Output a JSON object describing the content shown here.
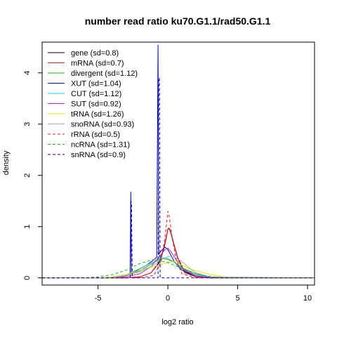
{
  "chart_data": {
    "type": "line",
    "title": "number read ratio ku70.G1.1/rad50.G1.1",
    "xlabel": "log2 ratio",
    "ylabel": "density",
    "xlim": [
      -9,
      10.5
    ],
    "ylim": [
      0,
      4.6
    ],
    "xticks": [
      -5,
      0,
      5,
      10
    ],
    "yticks": [
      0,
      1,
      2,
      3,
      4
    ],
    "grid": false,
    "legend_position": "top-left",
    "series": [
      {
        "name": "gene (sd=0.8)",
        "color": "#000000",
        "dash": "solid",
        "x": [
          -9,
          -3,
          -2,
          -1.2,
          -0.6,
          -0.3,
          -0.1,
          0,
          0.1,
          0.2,
          0.4,
          0.7,
          1.2,
          2,
          3,
          10.5
        ],
        "y": [
          0,
          0,
          0.02,
          0.1,
          0.3,
          0.55,
          0.8,
          0.96,
          0.97,
          0.9,
          0.7,
          0.4,
          0.12,
          0.02,
          0,
          0
        ]
      },
      {
        "name": "mRNA (sd=0.7)",
        "color": "#e41a1c",
        "dash": "solid",
        "x": [
          -9,
          -3,
          -2,
          -1.2,
          -0.6,
          -0.3,
          -0.1,
          0,
          0.1,
          0.2,
          0.4,
          0.7,
          1.2,
          2,
          3,
          10.5
        ],
        "y": [
          0,
          0,
          0.02,
          0.1,
          0.32,
          0.58,
          0.82,
          0.95,
          0.96,
          0.88,
          0.68,
          0.38,
          0.1,
          0.02,
          0,
          0
        ]
      },
      {
        "name": "divergent (sd=1.12)",
        "color": "#22b222",
        "dash": "solid",
        "x": [
          -9,
          -5,
          -4,
          -3,
          -2,
          -1,
          -0.5,
          0,
          0.5,
          1,
          2,
          3,
          4,
          10.5
        ],
        "y": [
          0,
          0,
          0.01,
          0.04,
          0.14,
          0.3,
          0.38,
          0.36,
          0.3,
          0.2,
          0.08,
          0.02,
          0,
          0
        ]
      },
      {
        "name": "XUT (sd=1.04)",
        "color": "#0000cc",
        "dash": "solid",
        "x": [
          -9,
          -4,
          -3,
          -2.7,
          -2.65,
          -2.6,
          -2.55,
          -2.4,
          -1.5,
          -0.8,
          -0.7,
          -0.65,
          -0.6,
          -0.55,
          -0.4,
          -0.2,
          0,
          0.2,
          0.5,
          1,
          2,
          3,
          4,
          10.5
        ],
        "y": [
          0,
          0,
          0.05,
          0.08,
          1.68,
          0.08,
          0.1,
          0.12,
          0.25,
          0.4,
          4.55,
          0.45,
          0.48,
          0.5,
          0.55,
          0.6,
          0.55,
          0.45,
          0.3,
          0.15,
          0.04,
          0.01,
          0,
          0
        ]
      },
      {
        "name": "CUT (sd=1.12)",
        "color": "#22cccc",
        "dash": "solid",
        "x": [
          -9,
          -5,
          -4,
          -3,
          -2,
          -1,
          -0.5,
          0,
          0.5,
          1,
          2,
          3,
          4,
          10.5
        ],
        "y": [
          0,
          0,
          0.02,
          0.06,
          0.18,
          0.32,
          0.4,
          0.38,
          0.3,
          0.18,
          0.06,
          0.02,
          0,
          0
        ]
      },
      {
        "name": "SUT (sd=0.92)",
        "color": "#cc22cc",
        "dash": "solid",
        "x": [
          -9,
          -4,
          -3,
          -2,
          -1.2,
          -0.6,
          -0.2,
          0,
          0.2,
          0.6,
          1.2,
          2,
          3,
          10.5
        ],
        "y": [
          0,
          0,
          0.02,
          0.08,
          0.22,
          0.42,
          0.55,
          0.58,
          0.52,
          0.35,
          0.15,
          0.04,
          0,
          0
        ]
      },
      {
        "name": "tRNA (sd=1.26)",
        "color": "#e6e600",
        "dash": "solid",
        "x": [
          -9,
          -5,
          -4,
          -3,
          -2,
          -1,
          0,
          0.5,
          1,
          1.5,
          2,
          3,
          4,
          5,
          10.5
        ],
        "y": [
          0,
          0,
          0.02,
          0.06,
          0.15,
          0.22,
          0.3,
          0.32,
          0.25,
          0.18,
          0.14,
          0.07,
          0.02,
          0,
          0
        ]
      },
      {
        "name": "snoRNA (sd=0.93)",
        "color": "#aaaaaa",
        "dash": "solid",
        "x": [
          -9,
          -4,
          -3,
          -2,
          -1,
          -0.5,
          0,
          0.5,
          1,
          1.5,
          2,
          3,
          10.5
        ],
        "y": [
          0,
          0,
          0.05,
          0.12,
          0.25,
          0.35,
          0.42,
          0.4,
          0.32,
          0.2,
          0.1,
          0.02,
          0
        ]
      },
      {
        "name": "rRNA (sd=0.5)",
        "color": "#e41a1c",
        "dash": "dashed",
        "x": [
          -9,
          -2,
          -1,
          -0.5,
          -0.2,
          0,
          0.1,
          0.3,
          0.6,
          1,
          2,
          10.5
        ],
        "y": [
          0,
          0,
          0.05,
          0.3,
          0.8,
          1.3,
          1.2,
          0.8,
          0.35,
          0.08,
          0,
          0
        ]
      },
      {
        "name": "ncRNA (sd=1.31)",
        "color": "#22b222",
        "dash": "dashed",
        "x": [
          -9,
          -6,
          -5,
          -4,
          -3,
          -2,
          -1,
          0,
          1,
          2,
          3,
          4,
          10.5
        ],
        "y": [
          0,
          0,
          0.02,
          0.06,
          0.15,
          0.28,
          0.36,
          0.3,
          0.18,
          0.08,
          0.03,
          0,
          0
        ]
      },
      {
        "name": "snRNA (sd=0.9)",
        "color": "#0000cc",
        "dash": "dashed",
        "x": [
          -9,
          -2.7,
          -2.65,
          -2.6,
          -2.55,
          -0.7,
          -0.65,
          -0.6,
          -0.55,
          0,
          0.05,
          0.1,
          0.15,
          10.5
        ],
        "y": [
          0,
          0,
          1.48,
          1.48,
          0,
          0,
          3.9,
          3.9,
          0,
          0,
          0,
          0,
          0,
          0
        ]
      }
    ]
  }
}
